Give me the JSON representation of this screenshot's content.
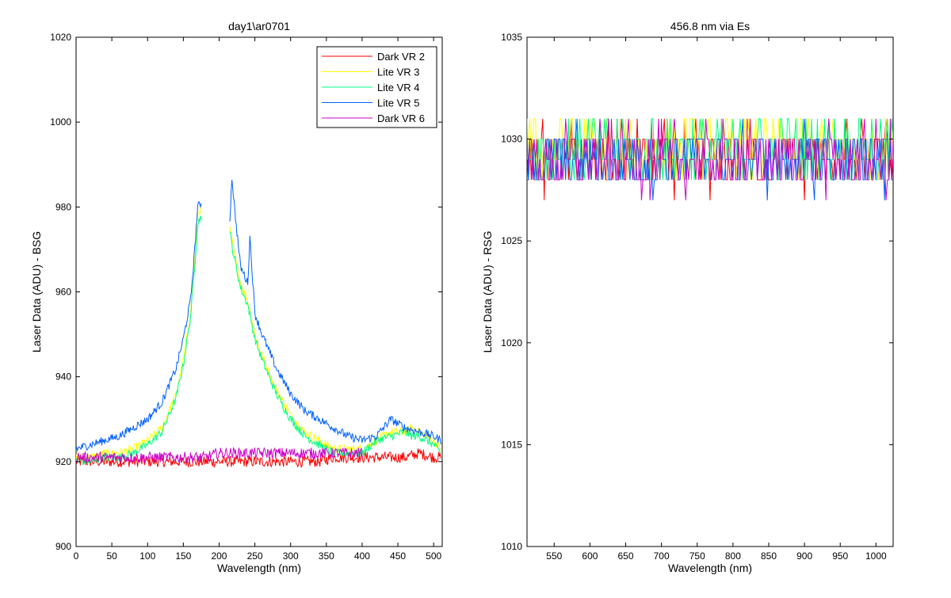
{
  "chart_data": [
    {
      "type": "line",
      "title": "day1\\ar0701",
      "xlabel": "Wavelength (nm)",
      "ylabel": "Laser Data (ADU) - BSG",
      "xlim": [
        0,
        512
      ],
      "ylim": [
        900,
        1020
      ],
      "xticks": [
        "0",
        "50",
        "100",
        "150",
        "200",
        "250",
        "300",
        "350",
        "400",
        "450",
        "500"
      ],
      "yticks": [
        "900",
        "920",
        "940",
        "960",
        "980",
        "1000",
        "1020"
      ],
      "legend_position": "top-right",
      "grid": false,
      "series": [
        {
          "name": "Dark VR 2",
          "color": "#ff0000",
          "x": [
            0,
            20,
            40,
            60,
            80,
            100,
            120,
            140,
            160,
            180,
            200,
            220,
            240,
            260,
            280,
            300,
            320,
            340,
            360,
            380,
            400,
            420,
            440,
            460,
            480,
            500,
            510
          ],
          "y": [
            920,
            920,
            920,
            920,
            920,
            920,
            920,
            920,
            920,
            920,
            920,
            920,
            920,
            920,
            920,
            920,
            920,
            920,
            921,
            921,
            921,
            921,
            921,
            921,
            922,
            921,
            921
          ]
        },
        {
          "name": "Lite VR 3",
          "color": "#ffff00",
          "x": [
            0,
            20,
            40,
            60,
            80,
            100,
            120,
            140,
            150,
            160,
            165,
            170,
            175,
            215,
            220,
            230,
            240,
            250,
            260,
            280,
            300,
            320,
            340,
            360,
            380,
            400,
            420,
            440,
            460,
            470,
            480,
            500,
            510
          ],
          "y": [
            921,
            921,
            922,
            922,
            923,
            925,
            928,
            936,
            944,
            955,
            965,
            978,
            980,
            975,
            970,
            962,
            958,
            950,
            945,
            937,
            931,
            927,
            925,
            923,
            923,
            923,
            925,
            927,
            927,
            928,
            927,
            925,
            923
          ]
        },
        {
          "name": "Lite VR 4",
          "color": "#00ff80",
          "x": [
            0,
            20,
            40,
            60,
            80,
            100,
            120,
            140,
            150,
            160,
            165,
            170,
            175,
            215,
            220,
            230,
            240,
            250,
            260,
            280,
            300,
            320,
            340,
            360,
            380,
            400,
            420,
            440,
            460,
            470,
            480,
            500,
            510
          ],
          "y": [
            920,
            920,
            921,
            921,
            922,
            924,
            927,
            935,
            943,
            954,
            964,
            976,
            978,
            974,
            969,
            961,
            957,
            949,
            944,
            936,
            930,
            926,
            924,
            922,
            922,
            922,
            925,
            926,
            927,
            926,
            926,
            924,
            922
          ]
        },
        {
          "name": "Lite VR 5",
          "color": "#0060ff",
          "x": [
            0,
            20,
            40,
            60,
            80,
            100,
            120,
            140,
            150,
            160,
            165,
            170,
            175,
            215,
            218,
            222,
            230,
            240,
            243,
            250,
            260,
            280,
            300,
            320,
            340,
            360,
            380,
            400,
            420,
            440,
            460,
            480,
            500,
            510
          ],
          "y": [
            923,
            924,
            925,
            926,
            928,
            930,
            934,
            942,
            949,
            958,
            968,
            980,
            981,
            977,
            987,
            979,
            966,
            962,
            973,
            955,
            950,
            942,
            936,
            932,
            930,
            928,
            926,
            925,
            926,
            930,
            928,
            927,
            926,
            925
          ]
        },
        {
          "name": "Dark VR 6",
          "color": "#cc00cc",
          "x": [
            0,
            20,
            40,
            60,
            80,
            100,
            120,
            140,
            160,
            180,
            200,
            220,
            240,
            260,
            280,
            300,
            320,
            340,
            360,
            380,
            400
          ],
          "y": [
            921,
            921,
            921,
            921,
            921,
            921,
            921,
            921,
            921,
            921,
            922,
            922,
            922,
            922,
            922,
            922,
            922,
            922,
            922,
            922,
            922
          ]
        }
      ]
    },
    {
      "type": "line",
      "title": "456.8 nm via Es",
      "xlabel": "Wavelength (nm)",
      "ylabel": "Laser Data (ADU) - RSG",
      "xlim": [
        512,
        1024
      ],
      "ylim": [
        1010,
        1035
      ],
      "xticks": [
        "550",
        "600",
        "650",
        "700",
        "750",
        "800",
        "850",
        "900",
        "950",
        "1000"
      ],
      "yticks": [
        "1010",
        "1015",
        "1020",
        "1025",
        "1030",
        "1035"
      ],
      "grid": false,
      "series": [
        {
          "name": "Dark VR 2",
          "color": "#ff0000",
          "x": [
            512,
            1024
          ],
          "y": [
            1029,
            1029
          ]
        },
        {
          "name": "Lite VR 3",
          "color": "#ffff00",
          "x": [
            512,
            1024
          ],
          "y": [
            1029.5,
            1029.5
          ]
        },
        {
          "name": "Lite VR 4",
          "color": "#00ff80",
          "x": [
            512,
            1024
          ],
          "y": [
            1029.5,
            1029.5
          ]
        },
        {
          "name": "Lite VR 5",
          "color": "#0060ff",
          "x": [
            512,
            1024
          ],
          "y": [
            1029,
            1029
          ]
        },
        {
          "name": "Dark VR 6",
          "color": "#cc00cc",
          "x": [
            512,
            1024
          ],
          "y": [
            1029,
            1029
          ]
        }
      ]
    }
  ]
}
